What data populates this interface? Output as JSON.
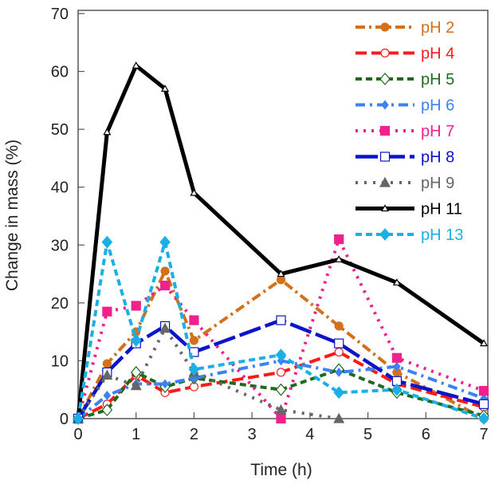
{
  "chart_data": {
    "type": "line",
    "title": "",
    "xlabel": "Time (h)",
    "ylabel": "Change in mass (%)",
    "xlim": [
      0,
      7
    ],
    "ylim": [
      0,
      70
    ],
    "xticks": [
      "0",
      "1",
      "2",
      "3",
      "4",
      "5",
      "6",
      "7"
    ],
    "yticks": [
      "0",
      "10",
      "20",
      "30",
      "40",
      "50",
      "60",
      "70"
    ],
    "grid": false,
    "legend_position": "top-right",
    "series": [
      {
        "name": "pH 2",
        "color": "#d2711a",
        "dash": "12,5,3,5",
        "width": 4,
        "marker": "circle-filled",
        "x": [
          0,
          0.5,
          1,
          1.5,
          2,
          3.5,
          4.5,
          5.5,
          7
        ],
        "y": [
          0,
          9.5,
          15,
          25.5,
          13.5,
          24,
          16,
          8,
          0
        ]
      },
      {
        "name": "pH 4",
        "color": "#ff1a1a",
        "dash": "14,6",
        "width": 4,
        "marker": "circle-open",
        "x": [
          0,
          0.5,
          1,
          1.5,
          2,
          3.5,
          4.5,
          5.5,
          7
        ],
        "y": [
          0,
          2.5,
          7.5,
          4.5,
          5.5,
          8,
          11.5,
          6,
          2
        ]
      },
      {
        "name": "pH 5",
        "color": "#1e6b1e",
        "dash": "8,5",
        "width": 4,
        "marker": "diamond-open",
        "x": [
          0,
          0.5,
          1,
          1.5,
          2,
          3.5,
          4.5,
          5.5,
          7
        ],
        "y": [
          0,
          1.5,
          8,
          5.5,
          7,
          5,
          8.5,
          4.5,
          0.5
        ]
      },
      {
        "name": "pH 6",
        "color": "#3b82f6",
        "dash": "12,6,3,6",
        "width": 4,
        "marker": "diamond-filled-small",
        "x": [
          0,
          0.5,
          1,
          1.5,
          2,
          3.5,
          4.5,
          5.5,
          7
        ],
        "y": [
          0,
          4,
          6,
          6,
          7,
          10,
          8,
          9,
          3.5
        ]
      },
      {
        "name": "pH 7",
        "color": "#f0208c",
        "dash": "3,7",
        "width": 4,
        "marker": "square-filled",
        "x": [
          0,
          0.5,
          1,
          1.5,
          2,
          3.5,
          4.5,
          5.5,
          7
        ],
        "y": [
          0,
          18.5,
          19.5,
          23,
          17,
          0,
          31,
          10.5,
          4.8
        ]
      },
      {
        "name": "pH 8",
        "color": "#0a14c8",
        "dash": "28,6",
        "width": 4.5,
        "marker": "square-open",
        "x": [
          0,
          0.5,
          1,
          1.5,
          2,
          3.5,
          4.5,
          5.5,
          7
        ],
        "y": [
          0,
          8,
          13,
          16,
          11.5,
          17,
          13,
          6.5,
          2.5
        ]
      },
      {
        "name": "pH 9",
        "color": "#666666",
        "dash": "3,8",
        "width": 4,
        "marker": "triangle-filled",
        "x": [
          0,
          0.5,
          1,
          1.5,
          2,
          3.5,
          4.5
        ],
        "y": [
          0,
          7.5,
          5.7,
          15.6,
          8,
          1.5,
          0
        ]
      },
      {
        "name": "pH 11",
        "color": "#000000",
        "dash": "",
        "width": 5,
        "marker": "triangle-open-small",
        "x": [
          0,
          0.5,
          1,
          1.5,
          2,
          3.5,
          4.5,
          5.5,
          7
        ],
        "y": [
          0,
          49.5,
          61,
          57,
          39,
          25,
          27.5,
          23.5,
          13
        ]
      },
      {
        "name": "pH 13",
        "color": "#1ab0e6",
        "dash": "8,5",
        "width": 4,
        "marker": "diamond-filled",
        "x": [
          0,
          0.5,
          1,
          1.5,
          2,
          3.5,
          4.5,
          5.5,
          7
        ],
        "y": [
          0,
          30.5,
          13.5,
          30.5,
          8.5,
          11,
          4.5,
          5,
          0
        ]
      }
    ]
  }
}
